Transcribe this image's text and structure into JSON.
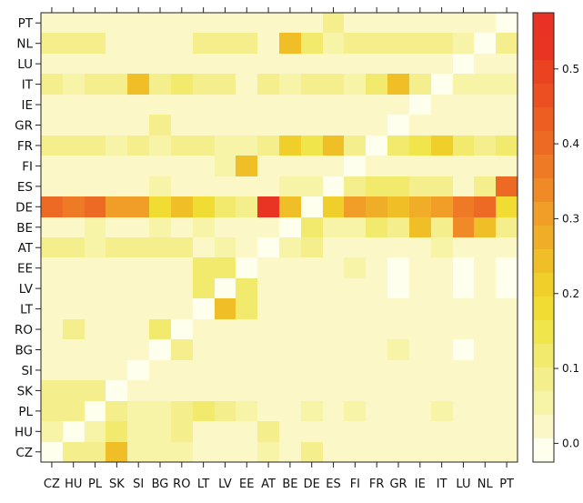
{
  "chart_data": {
    "type": "heatmap",
    "title": "",
    "xlabel": "",
    "ylabel": "",
    "x_categories": [
      "CZ",
      "HU",
      "PL",
      "SK",
      "SI",
      "BG",
      "RO",
      "LT",
      "LV",
      "EE",
      "AT",
      "BE",
      "DE",
      "ES",
      "FI",
      "FR",
      "GR",
      "IE",
      "IT",
      "LU",
      "NL",
      "PT"
    ],
    "y_categories": [
      "PT",
      "NL",
      "LU",
      "IT",
      "IE",
      "GR",
      "FR",
      "FI",
      "ES",
      "DE",
      "BE",
      "AT",
      "EE",
      "LV",
      "LT",
      "RO",
      "BG",
      "SI",
      "SK",
      "PL",
      "HU",
      "CZ"
    ],
    "colorbar": {
      "range": [
        -0.025,
        0.575
      ],
      "ticks": [
        0.0,
        0.1,
        0.2,
        0.3,
        0.4,
        0.5
      ],
      "tick_labels": [
        "0.0",
        "0.1",
        "0.2",
        "0.3",
        "0.4",
        "0.5"
      ],
      "colors": [
        "#ffffee",
        "#fbf7c7",
        "#f7f3a7",
        "#f4ee8c",
        "#f2ea6c",
        "#f0e54b",
        "#f0dc32",
        "#f0cf2a",
        "#f0bf28",
        "#f0ae28",
        "#f09e28",
        "#ef8a27",
        "#ee7a25",
        "#ed6a24",
        "#ed5e23",
        "#ec5022",
        "#eb4222",
        "#ea3423",
        "#e93125"
      ]
    },
    "values": [
      [
        0.02,
        0.02,
        0.02,
        0.02,
        0.02,
        0.02,
        0.02,
        0.02,
        0.02,
        0.02,
        0.02,
        0.02,
        0.02,
        0.1,
        0.02,
        0.02,
        0.02,
        0.02,
        0.02,
        0.02,
        0.02,
        0.0
      ],
      [
        0.07,
        0.07,
        0.07,
        0.03,
        0.03,
        0.03,
        0.03,
        0.07,
        0.07,
        0.07,
        0.03,
        0.25,
        0.12,
        0.05,
        0.07,
        0.07,
        0.07,
        0.08,
        0.08,
        0.05,
        0.0,
        0.07
      ],
      [
        0.03,
        0.03,
        0.03,
        0.03,
        0.03,
        0.03,
        0.03,
        0.03,
        0.03,
        0.03,
        0.03,
        0.03,
        0.03,
        0.03,
        0.03,
        0.03,
        0.03,
        0.03,
        0.03,
        0.0,
        0.03,
        0.03
      ],
      [
        0.08,
        0.06,
        0.1,
        0.07,
        0.25,
        0.1,
        0.13,
        0.07,
        0.07,
        0.03,
        0.08,
        0.05,
        0.07,
        0.07,
        0.05,
        0.11,
        0.23,
        0.08,
        0.0,
        0.06,
        0.05,
        0.05
      ],
      [
        0.03,
        0.03,
        0.03,
        0.03,
        0.03,
        0.03,
        0.03,
        0.03,
        0.03,
        0.03,
        0.03,
        0.03,
        0.03,
        0.03,
        0.03,
        0.03,
        0.03,
        0.0,
        0.03,
        0.03,
        0.03,
        0.03
      ],
      [
        0.03,
        0.03,
        0.03,
        0.03,
        0.03,
        0.07,
        0.03,
        0.03,
        0.03,
        0.03,
        0.03,
        0.03,
        0.03,
        0.03,
        0.03,
        0.03,
        0.0,
        0.03,
        0.03,
        0.03,
        0.03,
        0.03
      ],
      [
        0.08,
        0.08,
        0.08,
        0.06,
        0.1,
        0.06,
        0.1,
        0.07,
        0.05,
        0.05,
        0.07,
        0.2,
        0.16,
        0.23,
        0.1,
        0.0,
        0.13,
        0.14,
        0.2,
        0.11,
        0.1,
        0.12
      ],
      [
        0.03,
        0.03,
        0.03,
        0.03,
        0.03,
        0.03,
        0.03,
        0.03,
        0.06,
        0.25,
        0.03,
        0.03,
        0.03,
        0.03,
        0.0,
        0.03,
        0.03,
        0.03,
        0.03,
        0.03,
        0.03,
        0.03
      ],
      [
        0.03,
        0.03,
        0.03,
        0.03,
        0.03,
        0.06,
        0.03,
        0.03,
        0.03,
        0.03,
        0.03,
        0.05,
        0.05,
        0.0,
        0.07,
        0.12,
        0.12,
        0.09,
        0.08,
        0.03,
        0.07,
        0.4
      ],
      [
        0.4,
        0.38,
        0.41,
        0.32,
        0.3,
        0.19,
        0.24,
        0.19,
        0.13,
        0.08,
        0.54,
        0.24,
        0.0,
        0.21,
        0.32,
        0.26,
        0.24,
        0.27,
        0.31,
        0.36,
        0.39,
        0.18
      ],
      [
        0.03,
        0.03,
        0.06,
        0.03,
        0.03,
        0.05,
        0.03,
        0.06,
        0.03,
        0.03,
        0.03,
        0.0,
        0.12,
        0.06,
        0.06,
        0.13,
        0.08,
        0.23,
        0.09,
        0.33,
        0.24,
        0.07
      ],
      [
        0.07,
        0.07,
        0.04,
        0.08,
        0.1,
        0.07,
        0.07,
        0.03,
        0.04,
        0.03,
        0.0,
        0.04,
        0.07,
        0.03,
        0.03,
        0.03,
        0.03,
        0.03,
        0.06,
        0.03,
        0.03,
        0.03
      ],
      [
        0.03,
        0.03,
        0.03,
        0.03,
        0.03,
        0.03,
        0.03,
        0.11,
        0.13,
        0.0,
        0.03,
        0.03,
        0.03,
        0.03,
        0.06,
        0.03,
        0.0,
        0.03,
        0.03,
        0.0,
        0.03,
        0.0
      ],
      [
        0.03,
        0.03,
        0.03,
        0.03,
        0.03,
        0.03,
        0.03,
        0.11,
        0.0,
        0.11,
        0.03,
        0.03,
        0.03,
        0.03,
        0.03,
        0.03,
        0.0,
        0.03,
        0.03,
        0.0,
        0.03,
        0.0
      ],
      [
        0.03,
        0.03,
        0.03,
        0.03,
        0.03,
        0.03,
        0.03,
        0.0,
        0.23,
        0.11,
        0.03,
        0.03,
        0.03,
        0.03,
        0.03,
        0.03,
        0.03,
        0.03,
        0.03,
        0.03,
        0.03,
        0.03
      ],
      [
        0.03,
        0.07,
        0.03,
        0.03,
        0.03,
        0.11,
        0.0,
        0.03,
        0.03,
        0.03,
        0.03,
        0.03,
        0.03,
        0.03,
        0.03,
        0.03,
        0.03,
        0.03,
        0.03,
        0.03,
        0.03,
        0.03
      ],
      [
        0.03,
        0.03,
        0.03,
        0.03,
        0.03,
        0.0,
        0.07,
        0.03,
        0.03,
        0.03,
        0.03,
        0.03,
        0.03,
        0.03,
        0.03,
        0.03,
        0.06,
        0.03,
        0.03,
        0.0,
        0.03,
        0.03
      ],
      [
        0.03,
        0.03,
        0.03,
        0.03,
        0.0,
        0.03,
        0.03,
        0.03,
        0.03,
        0.03,
        0.03,
        0.03,
        0.03,
        0.03,
        0.03,
        0.03,
        0.03,
        0.03,
        0.03,
        0.03,
        0.03,
        0.03
      ],
      [
        0.08,
        0.07,
        0.07,
        0.0,
        0.03,
        0.03,
        0.03,
        0.03,
        0.03,
        0.03,
        0.03,
        0.03,
        0.03,
        0.03,
        0.03,
        0.03,
        0.03,
        0.03,
        0.03,
        0.03,
        0.03,
        0.03
      ],
      [
        0.07,
        0.07,
        0.0,
        0.1,
        0.06,
        0.06,
        0.07,
        0.11,
        0.07,
        0.06,
        0.03,
        0.03,
        0.06,
        0.03,
        0.06,
        0.03,
        0.03,
        0.03,
        0.06,
        0.03,
        0.03,
        0.03
      ],
      [
        0.06,
        0.0,
        0.06,
        0.11,
        0.06,
        0.06,
        0.1,
        0.03,
        0.03,
        0.03,
        0.07,
        0.03,
        0.03,
        0.03,
        0.03,
        0.03,
        0.03,
        0.03,
        0.03,
        0.03,
        0.03,
        0.03
      ],
      [
        0.0,
        0.09,
        0.07,
        0.23,
        0.06,
        0.06,
        0.06,
        0.03,
        0.03,
        0.03,
        0.06,
        0.03,
        0.07,
        0.03,
        0.03,
        0.03,
        0.03,
        0.03,
        0.03,
        0.03,
        0.03,
        0.03
      ]
    ]
  }
}
